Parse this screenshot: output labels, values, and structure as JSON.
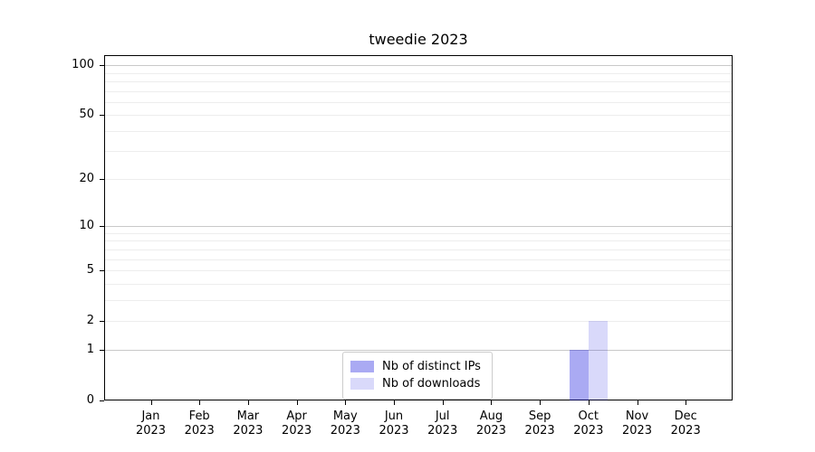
{
  "figure": {
    "background": "#ffffff"
  },
  "chart_data": {
    "type": "bar",
    "title": "tweedie 2023",
    "xlabel": "",
    "ylabel": "",
    "categories": [
      "Jan 2023",
      "Feb 2023",
      "Mar 2023",
      "Apr 2023",
      "May 2023",
      "Jun 2023",
      "Jul 2023",
      "Aug 2023",
      "Sep 2023",
      "Oct 2023",
      "Nov 2023",
      "Dec 2023"
    ],
    "series": [
      {
        "name": "Nb of distinct IPs",
        "color": "rgba(20,20,222,0.36)",
        "color_hex": "#aaaaf3",
        "values": [
          0,
          0,
          0,
          0,
          0,
          0,
          0,
          0,
          0,
          1,
          0,
          0
        ]
      },
      {
        "name": "Nb of downloads",
        "color": "rgba(20,20,222,0.16)",
        "color_hex": "#d9d9fa",
        "values": [
          0,
          0,
          0,
          0,
          0,
          0,
          0,
          0,
          0,
          2,
          0,
          0
        ]
      }
    ],
    "y_axis": {
      "scale": "log10(1+y)",
      "ticks": [
        0,
        1,
        2,
        5,
        10,
        20,
        50,
        100
      ],
      "range": [
        0,
        115
      ],
      "gridlines_major": [
        1,
        10,
        100
      ],
      "gridlines_minor": [
        2,
        3,
        4,
        5,
        6,
        7,
        8,
        9,
        20,
        30,
        40,
        50,
        60,
        70,
        80,
        90
      ]
    },
    "legend": {
      "position": "lower center",
      "entries": [
        "Nb of distinct IPs",
        "Nb of downloads"
      ]
    },
    "colors": {
      "grid_major": "#c9c9c9",
      "grid_minor": "#ededed",
      "spine": "#000000",
      "text": "#000000"
    }
  }
}
